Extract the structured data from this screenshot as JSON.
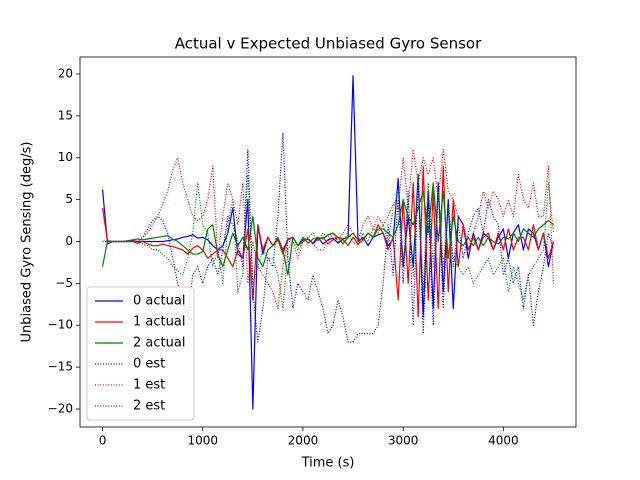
{
  "chart_data": {
    "type": "line",
    "title": "Actual v Expected Unbiased Gyro Sensor",
    "x_label": "Time (s)",
    "y_label": "Unbiased Gyro Sensing (deg/s)",
    "xlim": [
      -225,
      4725
    ],
    "ylim": [
      -22.15,
      22.03
    ],
    "xticks": [
      0,
      1000,
      2000,
      3000,
      4000
    ],
    "yticks": [
      {
        "value": -20,
        "label": "−20"
      },
      {
        "value": -15,
        "label": "−15"
      },
      {
        "value": -10,
        "label": "−10"
      },
      {
        "value": -5,
        "label": "−5"
      },
      0,
      5,
      10,
      15,
      20
    ],
    "legend": "lower left",
    "x": [
      0,
      50,
      100,
      150,
      200,
      250,
      300,
      350,
      400,
      450,
      500,
      550,
      600,
      650,
      700,
      750,
      800,
      850,
      900,
      950,
      1000,
      1050,
      1100,
      1150,
      1200,
      1250,
      1300,
      1350,
      1400,
      1450,
      1500,
      1550,
      1600,
      1650,
      1700,
      1750,
      1800,
      1850,
      1900,
      1950,
      2000,
      2050,
      2100,
      2150,
      2200,
      2250,
      2300,
      2350,
      2400,
      2450,
      2500,
      2550,
      2600,
      2650,
      2700,
      2750,
      2800,
      2850,
      2900,
      2950,
      3000,
      3050,
      3100,
      3150,
      3200,
      3250,
      3300,
      3350,
      3400,
      3450,
      3500,
      3550,
      3600,
      3650,
      3700,
      3750,
      3800,
      3850,
      3900,
      3950,
      4000,
      4050,
      4100,
      4150,
      4200,
      4250,
      4300,
      4350,
      4400,
      4450,
      4500
    ],
    "series": [
      {
        "name": "0 actual",
        "color": "#0000ff",
        "style": "solid",
        "values": [
          6.2,
          -0.3,
          0,
          0,
          0,
          0,
          0.1,
          0,
          0,
          0,
          0,
          0,
          0,
          0.1,
          0.2,
          0.3,
          0.5,
          0.6,
          0.8,
          0.4,
          0.5,
          0.2,
          -0.5,
          -1,
          -0.5,
          1,
          4,
          -1.5,
          -2,
          5,
          -20,
          2,
          -1.5,
          0.5,
          -0.5,
          0.3,
          -1,
          0.2,
          0.5,
          -0.5,
          0.2,
          0.3,
          -0.2,
          0.5,
          -0.3,
          0.2,
          0.4,
          -0.2,
          0.3,
          0.5,
          19.8,
          0,
          0.5,
          -0.5,
          0.5,
          0.8,
          1,
          -0.5,
          0.2,
          7.5,
          -3,
          3,
          -3,
          8,
          -9,
          6,
          -8,
          7,
          -6,
          5,
          -8,
          3,
          2,
          -2,
          1,
          -1,
          1,
          0.5,
          -1,
          0.5,
          1.5,
          -2,
          1,
          2,
          -1,
          1.5,
          1,
          -1,
          1,
          -3,
          0
        ]
      },
      {
        "name": "1 actual",
        "color": "#ff0000",
        "style": "solid",
        "values": [
          4,
          0,
          0,
          0,
          0,
          0,
          0,
          -0.2,
          0,
          -0.3,
          -0.5,
          -0.5,
          -0.3,
          -0.5,
          -0.6,
          -0.8,
          -1,
          -1.5,
          -0.8,
          -0.5,
          -1,
          -2,
          -1.5,
          -1,
          -1,
          -2,
          -3,
          -1,
          -2,
          1.5,
          -7,
          2,
          -1,
          0.5,
          -0.5,
          0.2,
          -1.5,
          0.3,
          0.5,
          -0.5,
          0,
          0.3,
          -0.3,
          0.3,
          0.5,
          -0.3,
          0.2,
          0.5,
          0.3,
          -0.5,
          0.5,
          -0.3,
          0.2,
          1,
          0.5,
          2,
          1,
          -1,
          0.5,
          -7,
          5,
          -5,
          7,
          -9,
          9,
          -7,
          6,
          -8,
          9,
          -6,
          5,
          -3,
          2,
          -1,
          0.5,
          -1,
          0.5,
          1,
          -1,
          1,
          -1,
          1.5,
          -1,
          0.5,
          0.5,
          -1,
          2,
          -1,
          1,
          -2,
          0
        ]
      },
      {
        "name": "2 actual",
        "color": "#008000",
        "style": "solid",
        "values": [
          -3,
          0.1,
          0,
          0,
          0,
          0.1,
          0.2,
          0.3,
          0.2,
          0.3,
          0.4,
          0.5,
          0.6,
          0.7,
          0.3,
          0,
          -0.5,
          -1,
          -1.5,
          -1.5,
          -1.2,
          1.5,
          2,
          -1.5,
          -3,
          -1,
          1,
          -0.5,
          0.5,
          -1,
          3,
          -2,
          -3,
          -1,
          -0.5,
          0.5,
          -1,
          -4,
          0.5,
          -0.5,
          0.5,
          -0.2,
          0.3,
          0.5,
          0.3,
          0.8,
          1,
          0.5,
          -0.3,
          0.5,
          1,
          0.2,
          0.3,
          1,
          0.5,
          1.5,
          1.5,
          1,
          0.5,
          2,
          5,
          3,
          2,
          4,
          6,
          1,
          7,
          0,
          6,
          -2,
          3,
          0,
          -0.5,
          0.5,
          -0.5,
          0.5,
          -0.5,
          0.5,
          0,
          -0.3,
          0.5,
          0.3,
          1,
          0,
          1.5,
          1,
          0.5,
          1.5,
          2,
          2.5,
          2
        ]
      },
      {
        "name": "0 est",
        "color": "#0000ff",
        "style": "dotted",
        "values": [
          0,
          0,
          0,
          0,
          0,
          0,
          0,
          0,
          0.5,
          1.5,
          2.5,
          3,
          2.5,
          1,
          -2,
          -5,
          -7,
          -9,
          -4,
          -3,
          -5,
          -3,
          -2,
          -4,
          -1,
          3,
          2,
          0,
          -3,
          11,
          -6,
          -12,
          -8,
          -2,
          -3,
          3,
          13,
          -2,
          -8,
          -5,
          -6,
          -7,
          -4,
          -6,
          -8,
          -11,
          -10,
          -7,
          -9,
          -12,
          -12,
          -11,
          -11,
          -11,
          -11,
          -10,
          -5,
          2,
          -4,
          5,
          -5,
          6,
          -10,
          8,
          -11,
          4,
          -10,
          7,
          -8,
          5,
          -3,
          2,
          -2,
          1,
          3,
          4,
          1,
          5,
          3,
          2,
          -4,
          -2,
          -5,
          -3,
          -8,
          -4,
          -10,
          -6,
          -3,
          1,
          -1
        ]
      },
      {
        "name": "1 est",
        "color": "#ff0000",
        "style": "dotted",
        "values": [
          0,
          0,
          0,
          0,
          0,
          0,
          0,
          0,
          0.5,
          1,
          2,
          3,
          4.5,
          6,
          8.5,
          10,
          7,
          5,
          3,
          2.5,
          3,
          5,
          9,
          -2,
          3,
          7,
          5,
          2,
          7,
          -5,
          0,
          -3,
          -4,
          -5,
          -6,
          -8,
          -3,
          0,
          0,
          -2,
          0,
          0.5,
          -0.3,
          -1,
          -1,
          0,
          1,
          0,
          1,
          2,
          1,
          0,
          2,
          3,
          1.5,
          3,
          2,
          3,
          4.5,
          4,
          10,
          4,
          11,
          7,
          10,
          8,
          10,
          5,
          11,
          6,
          5,
          3,
          2,
          -1,
          1,
          3,
          6,
          4,
          6,
          5,
          3,
          5,
          3,
          8,
          5,
          4,
          7,
          3,
          3,
          9,
          -5
        ]
      },
      {
        "name": "2 est",
        "color": "#008000",
        "style": "dotted",
        "values": [
          0,
          0,
          0,
          0,
          0,
          0,
          0,
          0,
          -0.3,
          -0.5,
          -1,
          -1,
          -1.5,
          -2,
          -3,
          -3.5,
          -4,
          -2,
          1,
          7,
          2,
          1,
          -3,
          -1,
          -5,
          2,
          5,
          -6,
          -4,
          8,
          -5,
          -3,
          -1,
          -2,
          -2,
          -4,
          -8,
          -1,
          0,
          -1,
          0,
          0.5,
          1,
          0,
          1,
          0.5,
          1,
          0,
          0,
          1,
          0,
          -0.5,
          1,
          0,
          1.5,
          1,
          2,
          0,
          4,
          6,
          -3,
          5,
          -4,
          8,
          -6,
          7,
          -3,
          6,
          -3,
          4,
          -2,
          -3,
          -4,
          -3,
          -5,
          -4,
          -3,
          -2,
          -4,
          -3,
          -2,
          -6,
          -3,
          -5,
          -7,
          -4,
          -3,
          -2,
          -1,
          7,
          1
        ]
      }
    ]
  }
}
